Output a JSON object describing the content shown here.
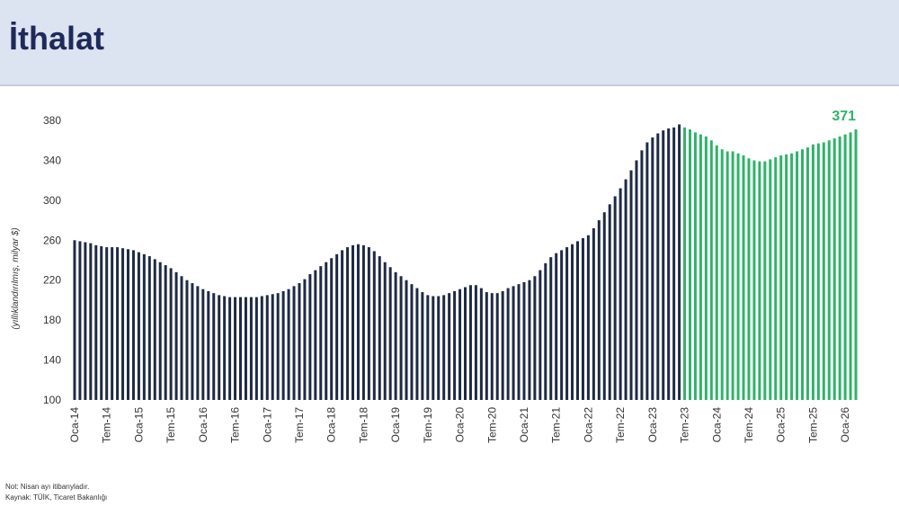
{
  "chart_data": {
    "type": "bar",
    "title": "İthalat",
    "ylabel": "(yıllıklandırılmış, milyar $)",
    "categories": [
      "Oca-14",
      null,
      null,
      null,
      null,
      null,
      "Tem-14",
      null,
      null,
      null,
      null,
      null,
      "Oca-15",
      null,
      null,
      null,
      null,
      null,
      "Tem-15",
      null,
      null,
      null,
      null,
      null,
      "Oca-16",
      null,
      null,
      null,
      null,
      null,
      "Tem-16",
      null,
      null,
      null,
      null,
      null,
      "Oca-17",
      null,
      null,
      null,
      null,
      null,
      "Tem-17",
      null,
      null,
      null,
      null,
      null,
      "Oca-18",
      null,
      null,
      null,
      null,
      null,
      "Tem-18",
      null,
      null,
      null,
      null,
      null,
      "Oca-19",
      null,
      null,
      null,
      null,
      null,
      "Tem-19",
      null,
      null,
      null,
      null,
      null,
      "Oca-20",
      null,
      null,
      null,
      null,
      null,
      "Tem-20",
      null,
      null,
      null,
      null,
      null,
      "Oca-21",
      null,
      null,
      null,
      null,
      null,
      "Tem-21",
      null,
      null,
      null,
      null,
      null,
      "Oca-22",
      null,
      null,
      null,
      null,
      null,
      "Tem-22",
      null,
      null,
      null,
      null,
      null,
      "Oca-23",
      null,
      null,
      null,
      null,
      null,
      "Tem-23",
      null,
      null,
      null,
      null,
      null,
      "Oca-24",
      null,
      null,
      null,
      null,
      null,
      "Tem-24",
      null,
      null,
      null,
      null,
      null,
      "Oca-25",
      null,
      null,
      null,
      null,
      null,
      "Tem-25",
      null,
      null,
      null,
      null,
      null,
      "Oca-26",
      null,
      null
    ],
    "series": [
      {
        "color": "#1f2a44",
        "values": [
          260,
          259,
          258,
          257,
          255,
          254,
          253,
          253,
          253,
          252,
          251,
          250,
          248,
          246,
          244,
          241,
          238,
          235,
          232,
          228,
          224,
          220,
          217,
          214,
          211,
          209,
          207,
          205,
          204,
          203,
          203,
          203,
          203,
          203,
          203,
          204,
          205,
          206,
          207,
          209,
          211,
          214,
          217,
          221,
          226,
          230,
          234,
          238,
          242,
          246,
          250,
          253,
          255,
          256,
          255,
          253,
          249,
          244,
          238,
          233,
          228,
          224,
          220,
          216,
          212,
          208,
          205,
          204,
          204,
          205,
          207,
          209,
          211,
          213,
          215,
          215,
          212,
          208,
          207,
          207,
          209,
          212,
          214,
          216,
          218,
          220,
          224,
          230,
          237,
          243,
          247,
          250,
          253,
          256,
          259,
          262,
          265,
          272,
          280,
          288,
          296,
          304,
          312,
          321,
          330,
          340,
          350,
          358,
          363,
          367,
          370,
          372,
          373,
          376,
          null,
          null,
          null,
          null,
          null,
          null,
          null,
          null,
          null,
          null,
          null,
          null,
          null,
          null,
          null,
          null,
          null,
          null,
          null,
          null,
          null,
          null,
          null,
          null,
          null,
          null,
          null,
          null,
          null,
          null,
          null,
          null,
          null
        ]
      },
      {
        "color": "#2fb36a",
        "values": [
          null,
          null,
          null,
          null,
          null,
          null,
          null,
          null,
          null,
          null,
          null,
          null,
          null,
          null,
          null,
          null,
          null,
          null,
          null,
          null,
          null,
          null,
          null,
          null,
          null,
          null,
          null,
          null,
          null,
          null,
          null,
          null,
          null,
          null,
          null,
          null,
          null,
          null,
          null,
          null,
          null,
          null,
          null,
          null,
          null,
          null,
          null,
          null,
          null,
          null,
          null,
          null,
          null,
          null,
          null,
          null,
          null,
          null,
          null,
          null,
          null,
          null,
          null,
          null,
          null,
          null,
          null,
          null,
          null,
          null,
          null,
          null,
          null,
          null,
          null,
          null,
          null,
          null,
          null,
          null,
          null,
          null,
          null,
          null,
          null,
          null,
          null,
          null,
          null,
          null,
          null,
          null,
          null,
          null,
          null,
          null,
          null,
          null,
          null,
          null,
          null,
          null,
          null,
          null,
          null,
          null,
          null,
          null,
          null,
          null,
          null,
          null,
          null,
          null,
          373,
          371,
          368,
          366,
          364,
          360,
          355,
          351,
          349,
          349,
          347,
          345,
          342,
          340,
          339,
          339,
          341,
          343,
          345,
          346,
          347,
          349,
          351,
          353,
          356,
          357,
          358,
          360,
          362,
          364,
          366,
          368,
          371
        ]
      }
    ],
    "ylim": [
      100,
      380
    ],
    "yticks": [
      100,
      140,
      180,
      220,
      260,
      300,
      340,
      380
    ],
    "grid": false
  },
  "footnotes": [
    "Not: Nisan ayı itibarıyladır.",
    "Kaynak: TÜİK, Ticaret Bakanlığı"
  ]
}
